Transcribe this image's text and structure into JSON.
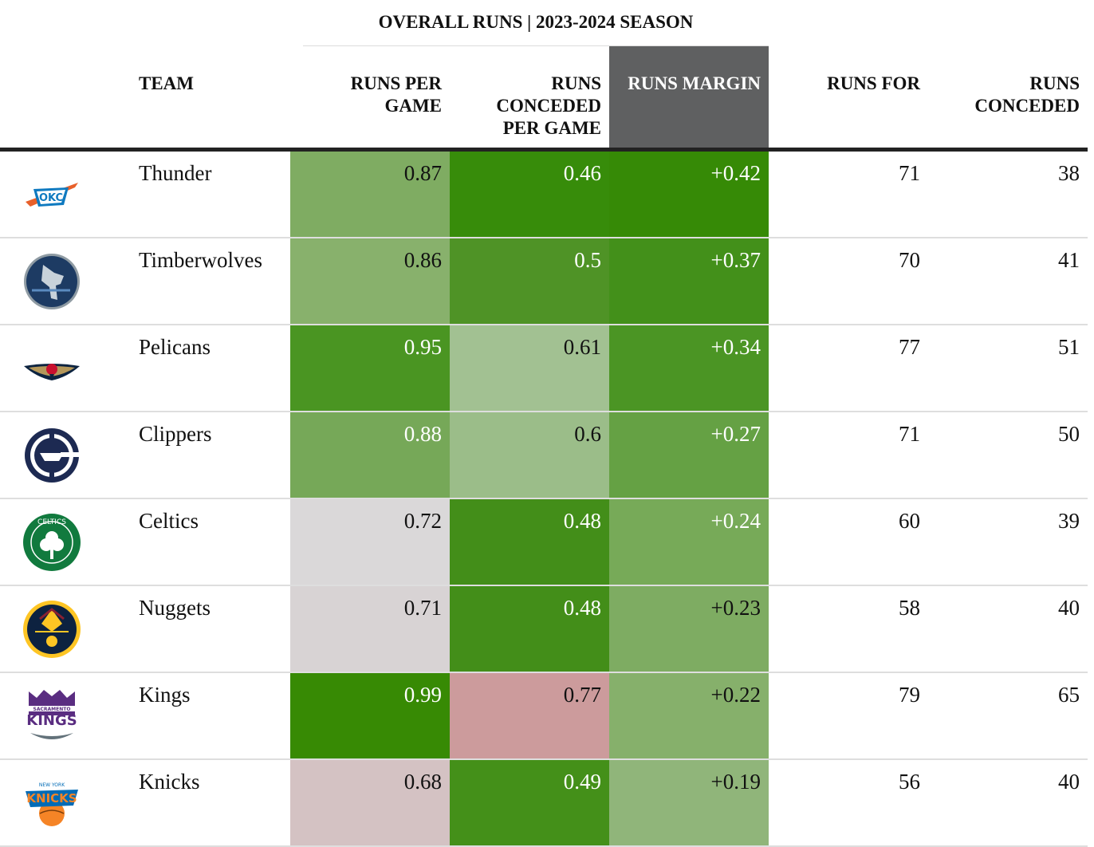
{
  "title": "OVERALL RUNS | 2023-2024 SEASON",
  "headers": {
    "team": "TEAM",
    "runs_per_game": "RUNS PER GAME",
    "runs_conceded_per_game": "RUNS CONCEDED PER GAME",
    "runs_margin": "RUNS MARGIN",
    "runs_for": "RUNS FOR",
    "runs_conceded": "RUNS CONCEDED"
  },
  "colors": {
    "highlight_header": "#5f6061",
    "rule": "#222222"
  },
  "chart_data": {
    "type": "table",
    "title": "OVERALL RUNS | 2023-2024 SEASON",
    "columns": [
      "TEAM",
      "RUNS PER GAME",
      "RUNS CONCEDED PER GAME",
      "RUNS MARGIN",
      "RUNS FOR",
      "RUNS CONCEDED"
    ],
    "rows": [
      {
        "team": "Thunder",
        "logo": "okc-thunder-logo-icon",
        "rpg": "0.87",
        "rpg_bg": "#7fac62",
        "rpg_light": false,
        "rcpg": "0.46",
        "rcpg_bg": "#378c0a",
        "rcpg_light": true,
        "margin": "+0.42",
        "margin_bg": "#368a06",
        "margin_light": true,
        "runs_for": "71",
        "runs_conceded": "38"
      },
      {
        "team": "Timberwolves",
        "logo": "timberwolves-logo-icon",
        "rpg": "0.86",
        "rpg_bg": "#88b16c",
        "rpg_light": false,
        "rcpg": "0.5",
        "rcpg_bg": "#4f9326",
        "rcpg_light": true,
        "margin": "+0.37",
        "margin_bg": "#43901a",
        "margin_light": true,
        "runs_for": "70",
        "runs_conceded": "41"
      },
      {
        "team": "Pelicans",
        "logo": "pelicans-logo-icon",
        "rpg": "0.95",
        "rpg_bg": "#4a9522",
        "rpg_light": true,
        "rcpg": "0.61",
        "rcpg_bg": "#a2c192",
        "rcpg_light": false,
        "margin": "+0.34",
        "margin_bg": "#4b9524",
        "margin_light": true,
        "runs_for": "77",
        "runs_conceded": "51"
      },
      {
        "team": "Clippers",
        "logo": "clippers-logo-icon",
        "rpg": "0.88",
        "rpg_bg": "#76a858",
        "rpg_light": true,
        "rcpg": "0.6",
        "rcpg_bg": "#9bbd89",
        "rcpg_light": false,
        "margin": "+0.27",
        "margin_bg": "#65a144",
        "margin_light": true,
        "runs_for": "71",
        "runs_conceded": "50"
      },
      {
        "team": "Celtics",
        "logo": "celtics-logo-icon",
        "rpg": "0.72",
        "rpg_bg": "#dad8d9",
        "rpg_light": false,
        "rcpg": "0.48",
        "rcpg_bg": "#438e19",
        "rcpg_light": true,
        "margin": "+0.24",
        "margin_bg": "#77aa58",
        "margin_light": true,
        "runs_for": "60",
        "runs_conceded": "39"
      },
      {
        "team": "Nuggets",
        "logo": "nuggets-logo-icon",
        "rpg": "0.71",
        "rpg_bg": "#d8d3d4",
        "rpg_light": false,
        "rcpg": "0.48",
        "rcpg_bg": "#438e19",
        "rcpg_light": true,
        "margin": "+0.23",
        "margin_bg": "#7eac62",
        "margin_light": false,
        "runs_for": "58",
        "runs_conceded": "40"
      },
      {
        "team": "Kings",
        "logo": "kings-logo-icon",
        "rpg": "0.99",
        "rpg_bg": "#378a04",
        "rpg_light": true,
        "rcpg": "0.77",
        "rcpg_bg": "#cc9b9c",
        "rcpg_light": false,
        "margin": "+0.22",
        "margin_bg": "#86b06b",
        "margin_light": false,
        "runs_for": "79",
        "runs_conceded": "65"
      },
      {
        "team": "Knicks",
        "logo": "knicks-logo-icon",
        "rpg": "0.68",
        "rpg_bg": "#d4c2c3",
        "rpg_light": false,
        "rcpg": "0.49",
        "rcpg_bg": "#449019",
        "rcpg_light": true,
        "margin": "+0.19",
        "margin_bg": "#90b57a",
        "margin_light": false,
        "runs_for": "56",
        "runs_conceded": "40"
      }
    ]
  }
}
